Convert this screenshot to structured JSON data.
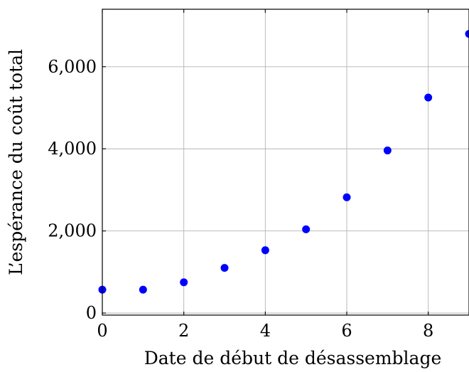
{
  "chart_data": {
    "type": "scatter",
    "title": "",
    "xlabel": "Date de début de désassemblage",
    "ylabel": "L’espérance du coût total",
    "x": [
      0,
      1,
      2,
      3,
      4,
      5,
      6,
      7,
      8,
      9
    ],
    "y": [
      570,
      570,
      750,
      1100,
      1530,
      2040,
      2820,
      3960,
      5250,
      6800
    ],
    "xlim": [
      0,
      9
    ],
    "ylim": [
      -50,
      7400
    ],
    "xticks": [
      0,
      2,
      4,
      6,
      8
    ],
    "yticks": [
      0,
      2000,
      4000,
      6000
    ],
    "xtick_labels": [
      "0",
      "2",
      "4",
      "6",
      "8"
    ],
    "ytick_labels": [
      "0",
      "2,000",
      "4,000",
      "6,000"
    ],
    "grid": true,
    "marker_color": "#0000ff",
    "grid_color": "#b3b3b3",
    "axis_color": "#000000"
  }
}
